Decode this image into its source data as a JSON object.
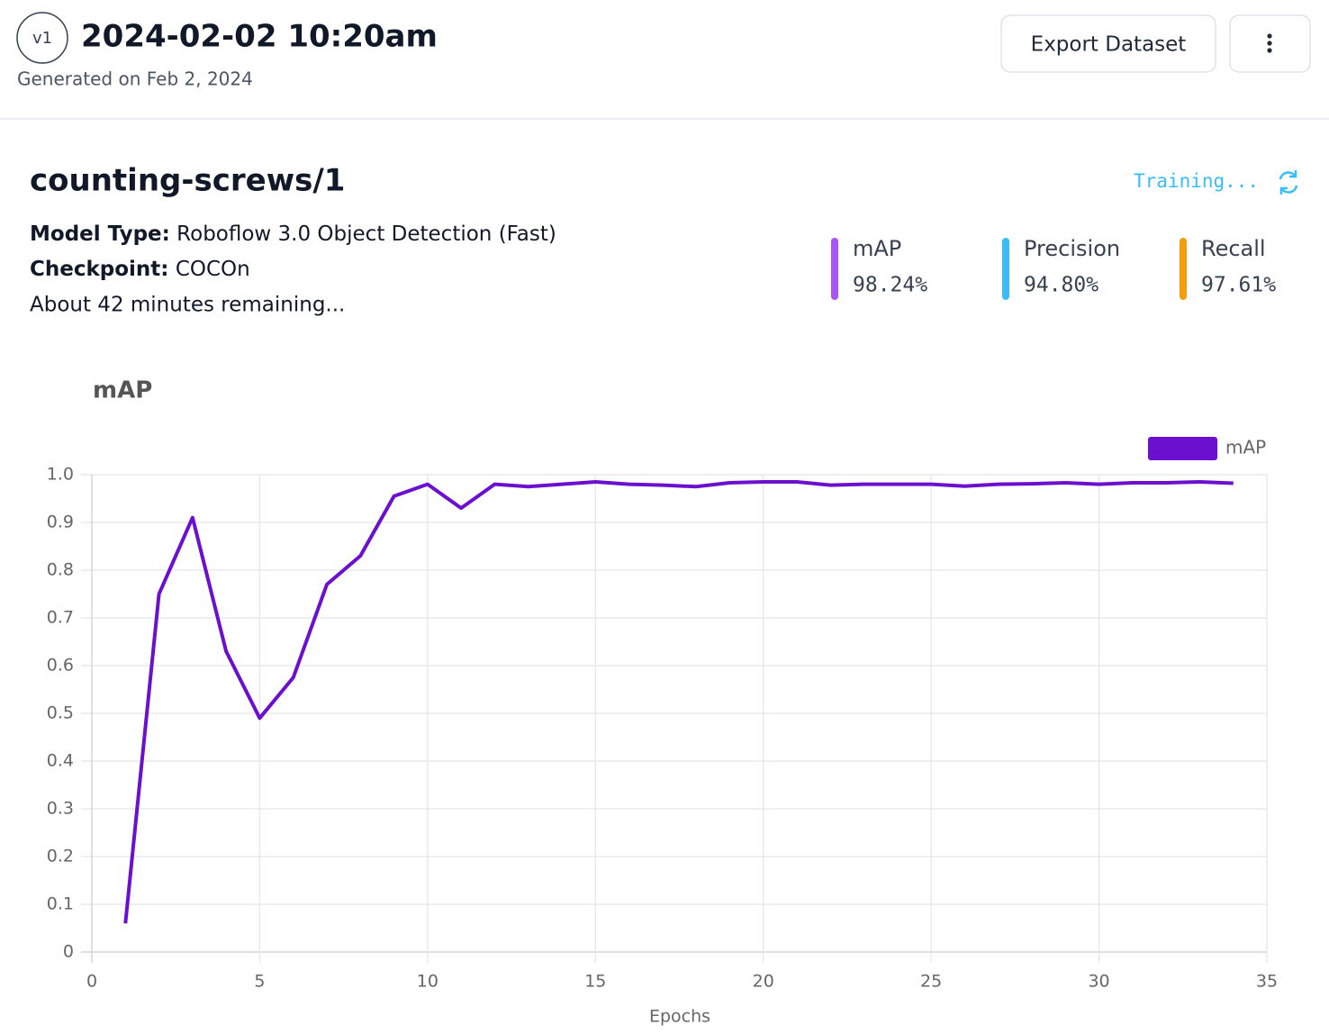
{
  "header": {
    "version": "v1",
    "title": "2024-02-02 10:20am",
    "subtitle": "Generated on Feb 2, 2024",
    "button": "Export Dataset"
  },
  "model": {
    "name": "counting-screws/1",
    "status": "Training...",
    "details": [
      {
        "label": "Model Type:",
        "value": "Roboflow 3.0 Object Detection (Fast)"
      },
      {
        "label": "Checkpoint:",
        "value": "COCOn"
      }
    ],
    "remaining": "About 42 minutes remaining..."
  },
  "metrics": [
    {
      "name": "mAP",
      "value": "98.24%",
      "color": "#a855f7"
    },
    {
      "name": "Precision",
      "value": "94.80%",
      "color": "#38bdf8"
    },
    {
      "name": "Recall",
      "value": "97.61%",
      "color": "#f59e0b"
    }
  ],
  "chart_data": {
    "type": "line",
    "title": "mAP",
    "x_label": "Epochs",
    "x": [
      1,
      2,
      3,
      4,
      5,
      6,
      7,
      8,
      9,
      10,
      11,
      12,
      13,
      14,
      15,
      16,
      17,
      18,
      19,
      20,
      21,
      22,
      23,
      24,
      25,
      26,
      27,
      28,
      29,
      30,
      31,
      32,
      33,
      34
    ],
    "series": [
      {
        "name": "mAP",
        "color": "#6b10cf",
        "values": [
          0.06,
          0.75,
          0.91,
          0.63,
          0.49,
          0.575,
          0.77,
          0.83,
          0.955,
          0.98,
          0.93,
          0.98,
          0.975,
          0.98,
          0.985,
          0.98,
          0.978,
          0.975,
          0.983,
          0.985,
          0.985,
          0.978,
          0.98,
          0.98,
          0.98,
          0.976,
          0.98,
          0.981,
          0.983,
          0.98,
          0.983,
          0.983,
          0.985,
          0.982
        ]
      }
    ],
    "xlim": [
      0,
      35
    ],
    "ylim": [
      0,
      1
    ],
    "xticks": [
      0,
      5,
      10,
      15,
      20,
      25,
      30,
      35
    ],
    "yticks": [
      0,
      0.1,
      0.2,
      0.3,
      0.4,
      0.5,
      0.6,
      0.7,
      0.8,
      0.9,
      {
        "value": 1,
        "label": "1.0"
      }
    ],
    "grid": true,
    "legend": "top-right"
  }
}
